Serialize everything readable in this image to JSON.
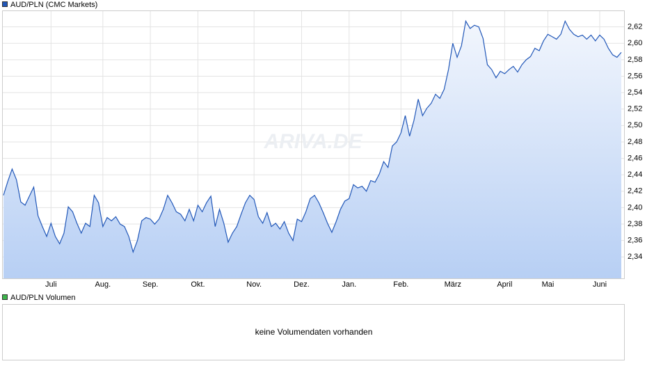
{
  "chart_data": {
    "type": "area",
    "watermark": "ARIVA.DE",
    "categories": [
      null,
      null,
      null,
      null,
      null,
      null,
      null,
      null,
      null,
      null,
      null,
      "Juli",
      null,
      null,
      null,
      null,
      null,
      null,
      null,
      null,
      null,
      null,
      null,
      "Aug.",
      null,
      null,
      null,
      null,
      null,
      null,
      null,
      null,
      null,
      null,
      "Sep.",
      null,
      null,
      null,
      null,
      null,
      null,
      null,
      null,
      null,
      null,
      "Okt.",
      null,
      null,
      null,
      null,
      null,
      null,
      null,
      null,
      null,
      null,
      null,
      null,
      "Nov.",
      null,
      null,
      null,
      null,
      null,
      null,
      null,
      null,
      null,
      null,
      "Dez.",
      null,
      null,
      null,
      null,
      null,
      null,
      null,
      null,
      null,
      null,
      "Jan.",
      null,
      null,
      null,
      null,
      null,
      null,
      null,
      null,
      null,
      null,
      null,
      "Feb.",
      null,
      null,
      null,
      null,
      null,
      null,
      null,
      null,
      null,
      null,
      null,
      "März",
      null,
      null,
      null,
      null,
      null,
      null,
      null,
      null,
      null,
      null,
      null,
      "April",
      null,
      null,
      null,
      null,
      null,
      null,
      null,
      null,
      null,
      "Mai",
      null,
      null,
      null,
      null,
      null,
      null,
      null,
      null,
      null,
      null,
      null,
      "Juni",
      null,
      null,
      null,
      null,
      null
    ],
    "series": [
      {
        "name": "AUD/PLN (CMC Markets)",
        "color": "#2157b8",
        "values": [
          2.415,
          2.432,
          2.447,
          2.434,
          2.407,
          2.403,
          2.414,
          2.425,
          2.39,
          2.377,
          2.365,
          2.381,
          2.365,
          2.356,
          2.369,
          2.401,
          2.395,
          2.381,
          2.369,
          2.381,
          2.377,
          2.415,
          2.406,
          2.377,
          2.388,
          2.384,
          2.389,
          2.38,
          2.377,
          2.365,
          2.346,
          2.36,
          2.384,
          2.388,
          2.386,
          2.38,
          2.386,
          2.398,
          2.415,
          2.406,
          2.395,
          2.392,
          2.384,
          2.398,
          2.384,
          2.403,
          2.395,
          2.406,
          2.414,
          2.377,
          2.398,
          2.381,
          2.358,
          2.369,
          2.377,
          2.392,
          2.406,
          2.415,
          2.41,
          2.389,
          2.381,
          2.394,
          2.377,
          2.381,
          2.374,
          2.383,
          2.369,
          2.36,
          2.386,
          2.383,
          2.395,
          2.411,
          2.415,
          2.406,
          2.394,
          2.381,
          2.37,
          2.383,
          2.398,
          2.408,
          2.411,
          2.428,
          2.424,
          2.426,
          2.42,
          2.433,
          2.431,
          2.441,
          2.456,
          2.449,
          2.475,
          2.48,
          2.491,
          2.512,
          2.487,
          2.506,
          2.532,
          2.512,
          2.521,
          2.527,
          2.538,
          2.533,
          2.544,
          2.568,
          2.6,
          2.583,
          2.597,
          2.627,
          2.618,
          2.622,
          2.62,
          2.606,
          2.574,
          2.568,
          2.558,
          2.566,
          2.563,
          2.568,
          2.572,
          2.565,
          2.574,
          2.58,
          2.584,
          2.594,
          2.591,
          2.603,
          2.611,
          2.608,
          2.605,
          2.611,
          2.627,
          2.617,
          2.611,
          2.608,
          2.61,
          2.605,
          2.61,
          2.603,
          2.61,
          2.605,
          2.594,
          2.586,
          2.583,
          2.589
        ]
      }
    ],
    "ylim": [
      2.314,
      2.64
    ],
    "yticks": [
      {
        "value": 2.34,
        "label": "2,34"
      },
      {
        "value": 2.36,
        "label": "2,36"
      },
      {
        "value": 2.38,
        "label": "2,38"
      },
      {
        "value": 2.4,
        "label": "2,40"
      },
      {
        "value": 2.42,
        "label": "2,42"
      },
      {
        "value": 2.44,
        "label": "2,44"
      },
      {
        "value": 2.46,
        "label": "2,46"
      },
      {
        "value": 2.48,
        "label": "2,48"
      },
      {
        "value": 2.5,
        "label": "2,50"
      },
      {
        "value": 2.52,
        "label": "2,52"
      },
      {
        "value": 2.54,
        "label": "2,54"
      },
      {
        "value": 2.56,
        "label": "2,56"
      },
      {
        "value": 2.58,
        "label": "2,58"
      },
      {
        "value": 2.6,
        "label": "2,60"
      },
      {
        "value": 2.62,
        "label": "2,62"
      }
    ],
    "grid": true,
    "volume": {
      "name": "AUD/PLN Volumen",
      "color": "#3cb44b",
      "note": "keine Volumendaten vorhanden"
    }
  }
}
